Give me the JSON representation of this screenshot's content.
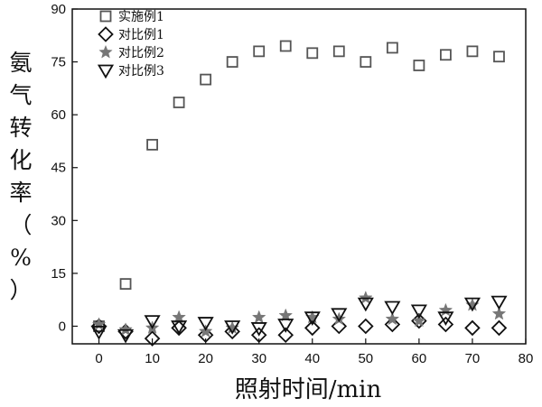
{
  "chart_data": {
    "type": "scatter",
    "xlabel": "照射时间/min",
    "ylabel": "氨气转化率（%）",
    "xlim": [
      -5,
      80
    ],
    "ylim": [
      -5,
      90
    ],
    "xticks": [
      "0",
      "10",
      "20",
      "30",
      "40",
      "50",
      "60",
      "70",
      "80"
    ],
    "yticks": [
      "0",
      "15",
      "30",
      "45",
      "60",
      "75",
      "90"
    ],
    "grid": false,
    "legend_position": "top-left",
    "x": [
      0,
      5,
      10,
      15,
      20,
      25,
      30,
      35,
      40,
      45,
      50,
      55,
      60,
      65,
      70,
      75
    ],
    "series": [
      {
        "name": "实施例1",
        "marker": "square",
        "color": "#555555",
        "values": [
          0,
          12,
          51.5,
          63.5,
          70,
          75,
          78,
          79.5,
          77.5,
          78,
          75,
          79,
          74,
          77,
          78,
          76.5
        ]
      },
      {
        "name": "对比例1",
        "marker": "diamond",
        "color": "#111111",
        "values": [
          0,
          -1.5,
          -3.5,
          -0.5,
          -2.5,
          -1.5,
          -2.5,
          -2.5,
          -0.5,
          0,
          0,
          0.5,
          1.5,
          0.5,
          -0.5,
          -0.5
        ]
      },
      {
        "name": "对比例2",
        "marker": "star",
        "color": "#777777",
        "values": [
          0.5,
          -1,
          -0.5,
          2.5,
          -1.5,
          -0.5,
          2.5,
          3,
          2.5,
          2,
          8,
          2,
          1.5,
          4.5,
          6,
          3.5
        ]
      },
      {
        "name": "对比例3",
        "marker": "triangle-down",
        "color": "#111111",
        "values": [
          -1.5,
          -2.5,
          1.5,
          0,
          1,
          0,
          -0.5,
          0.5,
          2.5,
          3.5,
          6.5,
          5.5,
          4.5,
          2.5,
          6.5,
          7
        ]
      }
    ]
  }
}
